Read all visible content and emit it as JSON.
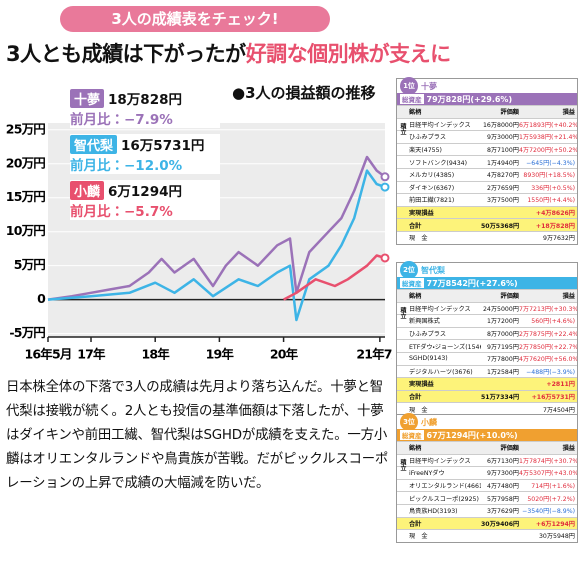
{
  "banner": "3人の成績表をチェック!",
  "headline": {
    "plain": "3人とも成績は下がったが",
    "accent": "好調な個別株が支えに"
  },
  "chart_data": {
    "type": "line",
    "title": "●3人の損益額の推移",
    "xlim": [
      2016.33,
      2021.58
    ],
    "xticks": [
      {
        "value": 2016.33,
        "label": "16年5月"
      },
      {
        "value": 2017,
        "label": "17年"
      },
      {
        "value": 2018,
        "label": "18年"
      },
      {
        "value": 2019,
        "label": "19年"
      },
      {
        "value": 2020,
        "label": "20年"
      },
      {
        "value": 2021.5,
        "label": "21年7月"
      }
    ],
    "ylim": [
      -5.5,
      26
    ],
    "yticks": [
      {
        "value": 25,
        "label": "25万円"
      },
      {
        "value": 20,
        "label": "20万円"
      },
      {
        "value": 15,
        "label": "15万円"
      },
      {
        "value": 10,
        "label": "10万円"
      },
      {
        "value": 5,
        "label": "5万円"
      },
      {
        "value": 0,
        "label": "0"
      },
      {
        "value": -5,
        "label": "-5万円"
      }
    ],
    "grid": true,
    "series": [
      {
        "name": "十夢",
        "color": "#9b72b8",
        "total_label": "18万828円",
        "change_label": "前月比：−7.9%",
        "x": [
          2016.33,
          2016.7,
          2017.0,
          2017.3,
          2017.6,
          2017.9,
          2018.1,
          2018.3,
          2018.6,
          2018.9,
          2019.1,
          2019.3,
          2019.6,
          2019.9,
          2020.1,
          2020.2,
          2020.4,
          2020.7,
          2020.9,
          2021.1,
          2021.3,
          2021.45,
          2021.58
        ],
        "values": [
          0,
          0.5,
          1,
          1.5,
          2,
          4,
          6,
          4,
          6,
          2,
          5,
          7,
          5,
          8,
          9,
          1,
          7,
          10,
          12,
          16,
          21,
          19,
          18.08
        ]
      },
      {
        "name": "智代梨",
        "color": "#3db4e6",
        "total_label": "16万5731円",
        "change_label": "前月比：−12.0%",
        "x": [
          2016.33,
          2017.0,
          2017.6,
          2018.0,
          2018.3,
          2018.6,
          2018.9,
          2019.3,
          2019.6,
          2019.9,
          2020.1,
          2020.2,
          2020.4,
          2020.7,
          2020.9,
          2021.1,
          2021.3,
          2021.45,
          2021.58
        ],
        "values": [
          0,
          0.5,
          1,
          2.5,
          1,
          3,
          0.5,
          3,
          2,
          4,
          5,
          -3,
          3,
          5,
          8,
          12,
          19,
          17,
          16.57
        ]
      },
      {
        "name": "小麟",
        "color": "#e8506e",
        "total_label": "6万1294円",
        "change_label": "前月比：−5.7%",
        "x": [
          2020.0,
          2020.2,
          2020.5,
          2020.8,
          2021.0,
          2021.3,
          2021.45,
          2021.58
        ],
        "values": [
          0,
          1,
          3,
          2,
          3,
          5,
          6.5,
          6.13
        ]
      }
    ]
  },
  "body": "日本株全体の下落で3人の成績は先月より落ち込んだ。十夢と智代梨は接戦が続く。2人とも投信の基準価額は下落したが、十夢はダイキンや前田工繊、智代梨はSGHDが成績を支えた。一方小麟はオリエンタルランドや鳥貴族が苦戦。だがピックルスコーポレーションの上昇で成績の大幅減を防いだ。",
  "tables": [
    {
      "rank": "1位",
      "name": "十夢",
      "summary_label": "総資産",
      "summary": "79万828円(+29.6%)",
      "columns": [
        "銘柄",
        "評価額",
        "損益"
      ],
      "group_label": "積立",
      "rows": [
        [
          "日経平均インデックス",
          "16万8000円",
          "6万1893円(+40.2%)"
        ],
        [
          "ひふみプラス",
          "9万3000円",
          "1万5938円(+21.4%)"
        ],
        [
          "楽天(4755)",
          "8万7100円",
          "4万7200円(+50.2%)"
        ],
        [
          "ソフトバンク(9434)",
          "1万4940円",
          "−645円(−4.3%)"
        ],
        [
          "メルカリ(4385)",
          "4万8270円",
          "8930円(+18.5%)"
        ],
        [
          "ダイキン(6367)",
          "2万7659円",
          "336円(+0.5%)"
        ],
        [
          "前田工繊(7821)",
          "3万7500円",
          "1550円(+4.4%)"
        ]
      ],
      "realized": [
        "実現損益",
        "+4万8626円"
      ],
      "total": [
        "合計",
        "50万5368円",
        "+18万828円"
      ],
      "cash": [
        "現　金",
        "9万7632円"
      ]
    },
    {
      "rank": "2位",
      "name": "智代梨",
      "summary_label": "総資産",
      "summary": "77万8542円(+27.6%)",
      "columns": [
        "銘柄",
        "評価額",
        "損益"
      ],
      "group_label": "積立",
      "rows": [
        [
          "日経平均インデックス",
          "24万5000円",
          "7万7213円(+30.3%)"
        ],
        [
          "新興国株式",
          "1万7200円",
          "560円(+4.6%)"
        ],
        [
          "ひふみプラス",
          "8万7000円",
          "2万7875円(+22.4%)"
        ],
        [
          "ETFダウ・ジョーンズ(1546)",
          "9万7195円",
          "2万7850円(+22.7%)"
        ],
        [
          "SGHD(9143)",
          "7万7800円",
          "4万7620円(+56.0%)"
        ],
        [
          "デジタルハーツ(3676)",
          "1万2584円",
          "−488円(−3.9%)"
        ]
      ],
      "realized": [
        "実現損益",
        "+2811円"
      ],
      "total": [
        "合計",
        "51万7334円",
        "+16万5731円"
      ],
      "cash": [
        "現　金",
        "7万4504円"
      ]
    },
    {
      "rank": "3位",
      "name": "小麟",
      "summary_label": "総資産",
      "summary": "67万1294円(+10.0%)",
      "columns": [
        "銘柄",
        "評価額",
        "損益"
      ],
      "group_label": "積立",
      "rows": [
        [
          "日経平均インデックス",
          "6万7130円",
          "1万7874円(+30.7%)"
        ],
        [
          "iFreeNYダウ",
          "9万7300円",
          "4万5307円(+43.0%)"
        ],
        [
          "オリエンタルランド(4661)",
          "4万7480円",
          "714円(+1.6%)"
        ],
        [
          "ピックルスコーポ(2925)",
          "5万7958円",
          "5020円(+7.2%)"
        ],
        [
          "鳥貴族HD(3193)",
          "3万7629円",
          "−3540円(−8.9%)"
        ]
      ],
      "total": [
        "合計",
        "30万9406円",
        "+6万1294円"
      ],
      "cash": [
        "現　金",
        "30万5948円"
      ]
    }
  ]
}
